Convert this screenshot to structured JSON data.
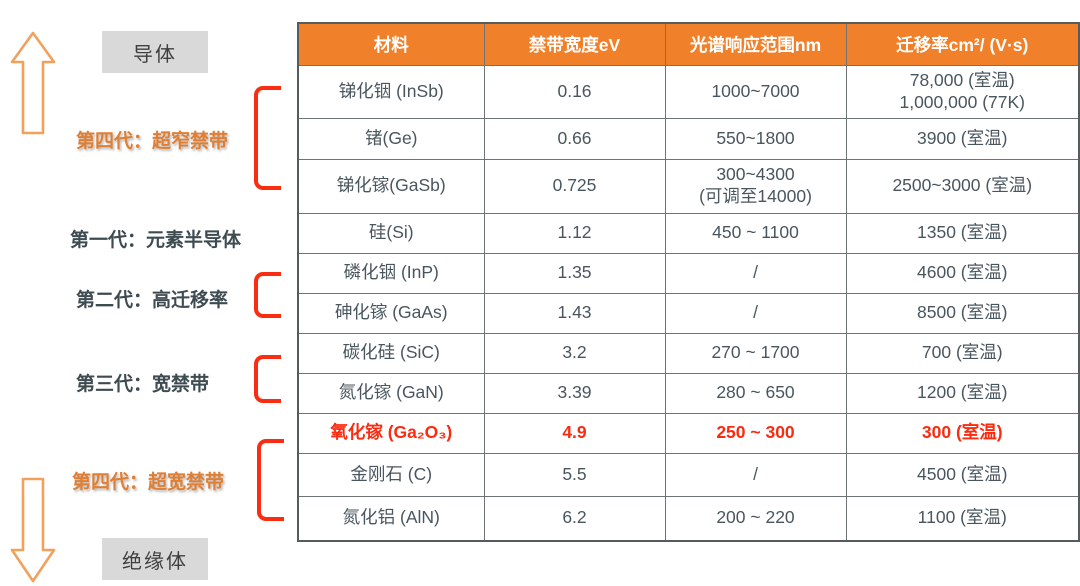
{
  "left_panel": {
    "conductor_label": "导体",
    "insulator_label": "绝缘体",
    "up_arrow_icon": "up-arrow",
    "down_arrow_icon": "down-arrow",
    "generation_labels": [
      {
        "text": "第四代：超窄禁带",
        "style": "orange"
      },
      {
        "text": "第一代：元素半导体",
        "style": "gray"
      },
      {
        "text": "第二代：高迁移率",
        "style": "gray"
      },
      {
        "text": "第三代：宽禁带",
        "style": "gray"
      },
      {
        "text": "第四代：超宽禁带",
        "style": "orange"
      }
    ]
  },
  "colors": {
    "header_bg": "#F0802A",
    "header_text": "#FFFFFF",
    "highlight_red": "#FA2B10",
    "bracket_red": "#FA2D12",
    "label_orange": "#E07F33",
    "label_gray": "#3E4C52",
    "arrow_orange": "#F2A15D",
    "gray_box_bg": "#D9D9D9",
    "cell_text": "#49565E"
  },
  "table": {
    "headers": [
      "材料",
      "禁带宽度eV",
      "光谱响应范围nm",
      "迁移率cm²/ (V·s)"
    ],
    "rows": [
      {
        "material": "锑化铟 (InSb)",
        "bandgap": "0.16",
        "spectral": "1000~7000",
        "mobility": "78,000 (室温)\n1,000,000 (77K)",
        "highlight": false
      },
      {
        "material": "锗(Ge)",
        "bandgap": "0.66",
        "spectral": "550~1800",
        "mobility": "3900 (室温)",
        "highlight": false
      },
      {
        "material": "锑化镓(GaSb)",
        "bandgap": "0.725",
        "spectral": "300~4300\n(可调至14000)",
        "mobility": "2500~3000 (室温)",
        "highlight": false
      },
      {
        "material": "硅(Si)",
        "bandgap": "1.12",
        "spectral": "450 ~ 1100",
        "mobility": "1350 (室温)",
        "highlight": false
      },
      {
        "material": "磷化铟 (InP)",
        "bandgap": "1.35",
        "spectral": "/",
        "mobility": "4600 (室温)",
        "highlight": false
      },
      {
        "material": "砷化镓 (GaAs)",
        "bandgap": "1.43",
        "spectral": "/",
        "mobility": "8500 (室温)",
        "highlight": false
      },
      {
        "material": "碳化硅 (SiC)",
        "bandgap": "3.2",
        "spectral": "270 ~ 1700",
        "mobility": "700 (室温)",
        "highlight": false
      },
      {
        "material": "氮化镓 (GaN)",
        "bandgap": "3.39",
        "spectral": "280 ~ 650",
        "mobility": "1200 (室温)",
        "highlight": false
      },
      {
        "material": "氧化镓 (Ga₂O₃)",
        "bandgap": "4.9",
        "spectral": "250 ~ 300",
        "mobility": "300 (室温)",
        "highlight": true
      },
      {
        "material": "金刚石 (C)",
        "bandgap": "5.5",
        "spectral": "/",
        "mobility": "4500 (室温)",
        "highlight": false
      },
      {
        "material": "氮化铝 (AlN)",
        "bandgap": "6.2",
        "spectral": "200 ~ 220",
        "mobility": "1100 (室温)",
        "highlight": false
      }
    ]
  }
}
